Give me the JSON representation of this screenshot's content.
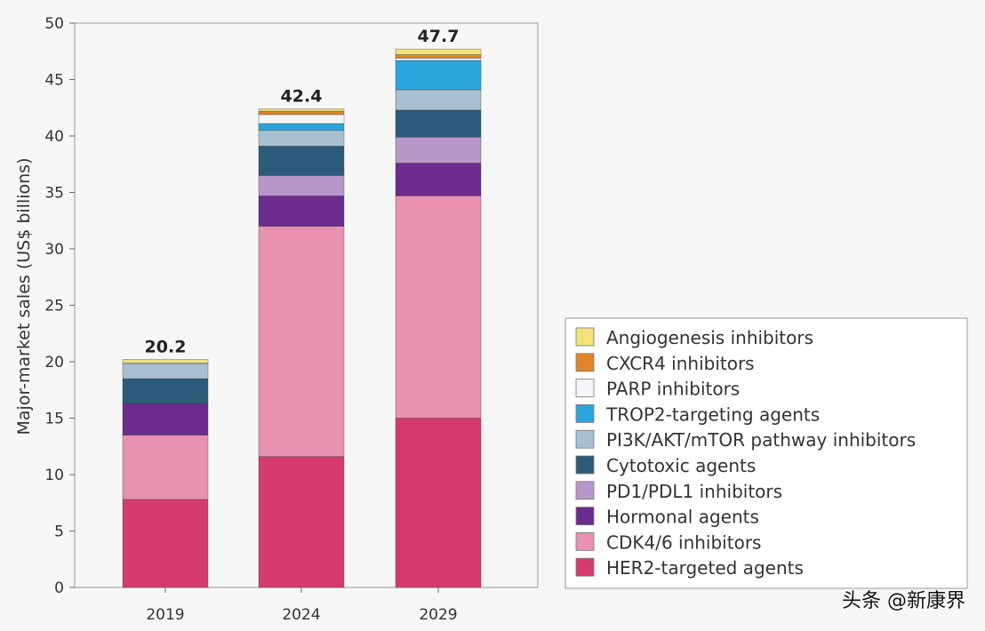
{
  "chart_data": {
    "type": "bar",
    "stacked": true,
    "ylabel": "Major-market sales (US$ billions)",
    "ylim": [
      0,
      50
    ],
    "yticks": [
      0,
      5,
      10,
      15,
      20,
      25,
      30,
      35,
      40,
      45,
      50
    ],
    "categories": [
      "2019",
      "2024",
      "2029"
    ],
    "totals": [
      "20.2",
      "42.4",
      "47.7"
    ],
    "series": [
      {
        "name": "HER2-targeted agents",
        "color": "#d63b6f",
        "values": [
          7.8,
          11.6,
          15.0
        ]
      },
      {
        "name": "CDK4/6 inhibitors",
        "color": "#e891b1",
        "values": [
          5.7,
          20.4,
          19.7
        ]
      },
      {
        "name": "Hormonal agents",
        "color": "#6b2c8e",
        "values": [
          2.8,
          2.7,
          2.9
        ]
      },
      {
        "name": "PD1/PDL1 inhibitors",
        "color": "#b897cb",
        "values": [
          0.0,
          1.8,
          2.3
        ]
      },
      {
        "name": "Cytotoxic agents",
        "color": "#2b5b79",
        "values": [
          2.2,
          2.6,
          2.4
        ]
      },
      {
        "name": "PI3K/AKT/mTOR pathway inhibitors",
        "color": "#a9bfd2",
        "values": [
          1.3,
          1.4,
          1.8
        ]
      },
      {
        "name": "TROP2-targeting agents",
        "color": "#2aa5dc",
        "values": [
          0.0,
          0.6,
          2.6
        ]
      },
      {
        "name": "PARP inhibitors",
        "color": "#f4f6f8",
        "values": [
          0.1,
          0.8,
          0.2
        ]
      },
      {
        "name": "CXCR4 inhibitors",
        "color": "#e0862a",
        "values": [
          0.0,
          0.3,
          0.3
        ]
      },
      {
        "name": "Angiogenesis inhibitors",
        "color": "#f3e27b",
        "values": [
          0.3,
          0.2,
          0.5
        ]
      }
    ],
    "legend_position": "right"
  },
  "watermark": "头条 @新康界"
}
